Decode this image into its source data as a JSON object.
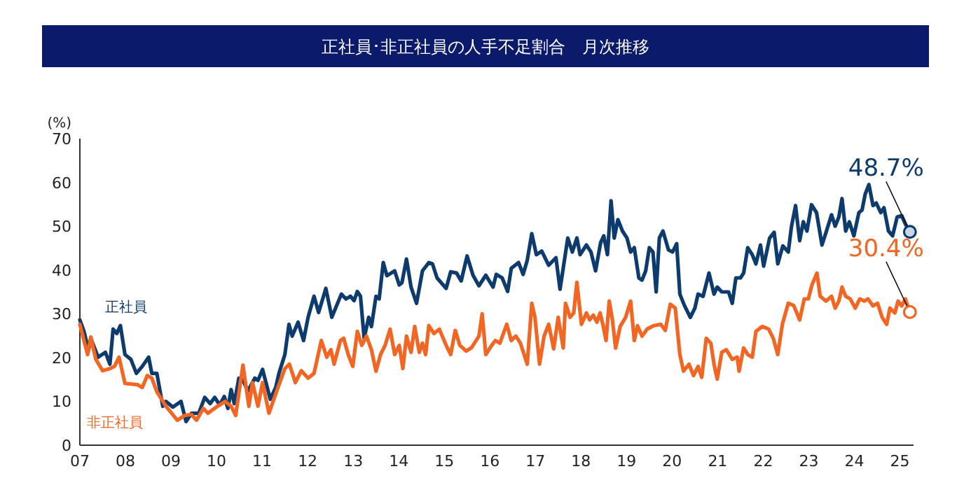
{
  "chart_data": {
    "type": "line",
    "title": "正社員･非正社員の人手不足割合　月次推移",
    "ylabel": "(%)",
    "xlim": [
      2007,
      2025.3
    ],
    "ylim": [
      0,
      70
    ],
    "yticks": [
      0,
      10,
      20,
      30,
      40,
      50,
      60,
      70
    ],
    "xticks": [
      {
        "value": 2007,
        "label": "07"
      },
      {
        "value": 2008,
        "label": "08"
      },
      {
        "value": 2009,
        "label": "09"
      },
      {
        "value": 2010,
        "label": "10"
      },
      {
        "value": 2011,
        "label": "11"
      },
      {
        "value": 2012,
        "label": "12"
      },
      {
        "value": 2013,
        "label": "13"
      },
      {
        "value": 2014,
        "label": "14"
      },
      {
        "value": 2015,
        "label": "15"
      },
      {
        "value": 2016,
        "label": "16"
      },
      {
        "value": 2017,
        "label": "17"
      },
      {
        "value": 2018,
        "label": "18"
      },
      {
        "value": 2019,
        "label": "19"
      },
      {
        "value": 2020,
        "label": "20"
      },
      {
        "value": 2021,
        "label": "21"
      },
      {
        "value": 2022,
        "label": "22"
      },
      {
        "value": 2023,
        "label": "23"
      },
      {
        "value": 2024,
        "label": "24"
      },
      {
        "value": 2025,
        "label": "25"
      }
    ],
    "series": [
      {
        "name": "正社員",
        "color": "#0d3b6e",
        "x": [
          2007.0,
          2007.09,
          2007.19,
          2007.24,
          2007.4,
          2007.56,
          2007.66,
          2007.73,
          2007.81,
          2007.89,
          2007.99,
          2008.12,
          2008.24,
          2008.37,
          2008.51,
          2008.58,
          2008.69,
          2008.82,
          2008.89,
          2009.04,
          2009.22,
          2009.33,
          2009.45,
          2009.61,
          2009.74,
          2009.86,
          2009.96,
          2010.07,
          2010.17,
          2010.25,
          2010.32,
          2010.39,
          2010.49,
          2010.58,
          2010.69,
          2010.84,
          2010.91,
          2011.01,
          2011.18,
          2011.3,
          2011.37,
          2011.5,
          2011.59,
          2011.66,
          2011.79,
          2011.91,
          2012.01,
          2012.14,
          2012.24,
          2012.4,
          2012.53,
          2012.74,
          2012.84,
          2012.94,
          2013.02,
          2013.09,
          2013.16,
          2013.24,
          2013.34,
          2013.4,
          2013.5,
          2013.57,
          2013.66,
          2013.74,
          2013.91,
          2014.01,
          2014.07,
          2014.17,
          2014.27,
          2014.39,
          2014.52,
          2014.66,
          2014.74,
          2014.84,
          2015.04,
          2015.14,
          2015.27,
          2015.37,
          2015.5,
          2015.63,
          2015.76,
          2015.91,
          2016.07,
          2016.14,
          2016.27,
          2016.39,
          2016.47,
          2016.63,
          2016.73,
          2016.82,
          2016.92,
          2017.02,
          2017.14,
          2017.29,
          2017.45,
          2017.54,
          2017.71,
          2017.81,
          2017.91,
          2017.98,
          2018.12,
          2018.22,
          2018.32,
          2018.43,
          2018.5,
          2018.58,
          2018.66,
          2018.73,
          2018.81,
          2018.91,
          2019.01,
          2019.09,
          2019.17,
          2019.27,
          2019.34,
          2019.42,
          2019.5,
          2019.58,
          2019.65,
          2019.72,
          2019.8,
          2019.92,
          2020.01,
          2020.1,
          2020.17,
          2020.27,
          2020.4,
          2020.5,
          2020.57,
          2020.68,
          2020.81,
          2020.92,
          2020.99,
          2021.09,
          2021.24,
          2021.32,
          2021.4,
          2021.5,
          2021.57,
          2021.66,
          2021.76,
          2021.84,
          2021.94,
          2022.01,
          2022.14,
          2022.24,
          2022.32,
          2022.43,
          2022.55,
          2022.62,
          2022.71,
          2022.8,
          2022.88,
          2022.96,
          2023.06,
          2023.17,
          2023.29,
          2023.37,
          2023.5,
          2023.58,
          2023.66,
          2023.73,
          2023.81,
          2023.89,
          2023.99,
          2024.1,
          2024.17,
          2024.24,
          2024.32,
          2024.41,
          2024.48,
          2024.58,
          2024.65,
          2024.75,
          2024.84,
          2024.94,
          2025.04,
          2025.12,
          2025.22
        ],
        "values": [
          28.6,
          26.0,
          21.7,
          24.4,
          20.1,
          21.2,
          18.5,
          26.5,
          25.5,
          27.3,
          20.7,
          19.6,
          16.4,
          18.0,
          20.1,
          16.4,
          16.4,
          8.9,
          10.0,
          8.7,
          10.0,
          5.4,
          7.3,
          7.3,
          10.9,
          9.5,
          10.9,
          9.2,
          11.1,
          8.4,
          12.7,
          9.5,
          15.3,
          14.8,
          12.4,
          15.3,
          14.8,
          17.3,
          10.5,
          13.2,
          16.4,
          20.7,
          27.6,
          24.9,
          28.1,
          23.9,
          29.2,
          34.0,
          30.3,
          35.8,
          29.2,
          34.5,
          33.4,
          34.0,
          33.0,
          35.1,
          34.0,
          24.4,
          29.2,
          27.1,
          34.0,
          33.4,
          41.7,
          38.7,
          39.8,
          36.6,
          37.1,
          42.5,
          36.1,
          32.4,
          39.8,
          41.7,
          41.4,
          38.2,
          35.8,
          39.6,
          39.3,
          37.5,
          43.2,
          38.8,
          36.4,
          38.8,
          36.1,
          39.0,
          38.2,
          35.1,
          40.4,
          41.7,
          39.0,
          42.2,
          48.3,
          43.5,
          44.3,
          41.1,
          42.8,
          35.6,
          47.3,
          44.1,
          47.3,
          43.5,
          45.7,
          44.1,
          39.8,
          46.2,
          47.8,
          43.5,
          55.8,
          47.3,
          51.5,
          48.9,
          47.3,
          44.1,
          45.1,
          38.2,
          37.7,
          39.8,
          45.1,
          44.1,
          35.0,
          47.3,
          48.9,
          44.6,
          44.1,
          46.0,
          34.5,
          31.9,
          29.2,
          31.3,
          34.5,
          34.0,
          39.3,
          34.5,
          36.1,
          35.0,
          35.0,
          32.4,
          38.2,
          38.2,
          39.3,
          45.1,
          43.5,
          41.4,
          45.7,
          40.9,
          47.3,
          48.6,
          41.4,
          45.5,
          44.1,
          49.9,
          54.7,
          46.7,
          51.0,
          48.9,
          54.9,
          53.1,
          45.7,
          48.3,
          52.6,
          50.0,
          52.1,
          56.3,
          48.9,
          51.0,
          47.8,
          53.1,
          53.7,
          57.4,
          59.5,
          54.7,
          55.3,
          53.1,
          54.2,
          48.9,
          47.8,
          52.1,
          52.4,
          50.5,
          48.7
        ]
      },
      {
        "name": "非正社員",
        "color": "#f26522",
        "x": [
          2007.0,
          2007.09,
          2007.17,
          2007.24,
          2007.35,
          2007.5,
          2007.66,
          2007.76,
          2007.86,
          2007.99,
          2008.27,
          2008.37,
          2008.48,
          2008.58,
          2008.69,
          2008.89,
          2009.14,
          2009.3,
          2009.45,
          2009.56,
          2009.71,
          2009.81,
          2010.02,
          2010.19,
          2010.32,
          2010.42,
          2010.58,
          2010.71,
          2010.79,
          2010.91,
          2011.01,
          2011.15,
          2011.35,
          2011.5,
          2011.6,
          2011.73,
          2011.86,
          2012.01,
          2012.14,
          2012.3,
          2012.42,
          2012.51,
          2012.58,
          2012.72,
          2012.79,
          2012.89,
          2012.99,
          2013.09,
          2013.19,
          2013.29,
          2013.4,
          2013.5,
          2013.6,
          2013.7,
          2013.81,
          2013.91,
          2014.01,
          2014.09,
          2014.17,
          2014.27,
          2014.35,
          2014.45,
          2014.52,
          2014.59,
          2014.66,
          2014.77,
          2014.89,
          2015.04,
          2015.14,
          2015.24,
          2015.34,
          2015.48,
          2015.6,
          2015.76,
          2015.83,
          2015.91,
          2016.04,
          2016.12,
          2016.22,
          2016.37,
          2016.47,
          2016.57,
          2016.67,
          2016.82,
          2016.92,
          2016.99,
          2017.09,
          2017.19,
          2017.29,
          2017.4,
          2017.5,
          2017.61,
          2017.66,
          2017.76,
          2017.84,
          2017.91,
          2018.01,
          2018.12,
          2018.19,
          2018.27,
          2018.35,
          2018.42,
          2018.49,
          2018.55,
          2018.62,
          2018.69,
          2018.76,
          2018.86,
          2018.98,
          2019.09,
          2019.17,
          2019.24,
          2019.34,
          2019.45,
          2019.6,
          2019.75,
          2019.85,
          2019.96,
          2020.07,
          2020.17,
          2020.25,
          2020.37,
          2020.47,
          2020.57,
          2020.65,
          2020.75,
          2020.85,
          2020.92,
          2020.99,
          2021.09,
          2021.19,
          2021.32,
          2021.43,
          2021.47,
          2021.57,
          2021.66,
          2021.76,
          2021.84,
          2021.98,
          2022.12,
          2022.22,
          2022.32,
          2022.42,
          2022.55,
          2022.67,
          2022.8,
          2022.9,
          2022.99,
          2023.07,
          2023.18,
          2023.25,
          2023.38,
          2023.5,
          2023.58,
          2023.66,
          2023.73,
          2023.81,
          2023.91,
          2024.02,
          2024.12,
          2024.22,
          2024.3,
          2024.41,
          2024.51,
          2024.61,
          2024.71,
          2024.78,
          2024.89,
          2024.96,
          2025.04,
          2025.12,
          2025.22
        ],
        "values": [
          27.6,
          23.9,
          20.7,
          24.7,
          19.6,
          17.0,
          17.5,
          18.0,
          20.1,
          14.1,
          13.8,
          13.2,
          15.9,
          15.3,
          12.2,
          8.9,
          5.7,
          6.8,
          7.0,
          5.7,
          8.4,
          7.3,
          8.9,
          10.0,
          8.9,
          6.8,
          18.3,
          8.9,
          14.3,
          8.9,
          14.3,
          7.3,
          13.2,
          17.5,
          18.5,
          14.3,
          17.0,
          15.3,
          16.4,
          23.9,
          20.1,
          21.8,
          18.5,
          23.9,
          24.4,
          20.7,
          18.0,
          26.0,
          22.8,
          24.9,
          21.8,
          16.9,
          20.7,
          22.8,
          26.5,
          20.7,
          22.8,
          17.5,
          24.9,
          21.2,
          27.1,
          21.2,
          23.3,
          20.7,
          27.3,
          25.5,
          26.5,
          22.8,
          20.7,
          26.2,
          22.8,
          21.5,
          22.3,
          24.9,
          30.0,
          20.7,
          22.8,
          23.9,
          23.3,
          27.6,
          23.9,
          24.9,
          23.3,
          18.5,
          32.4,
          29.2,
          18.5,
          24.9,
          27.6,
          22.0,
          29.2,
          22.2,
          32.4,
          29.2,
          30.2,
          37.2,
          27.6,
          30.2,
          28.6,
          29.7,
          28.1,
          30.2,
          27.1,
          23.9,
          32.9,
          28.6,
          22.2,
          27.1,
          29.2,
          32.9,
          23.9,
          27.3,
          24.9,
          26.5,
          27.3,
          27.6,
          26.2,
          32.2,
          31.3,
          20.7,
          16.9,
          18.5,
          15.9,
          18.0,
          15.5,
          24.4,
          23.3,
          18.5,
          15.1,
          21.2,
          21.8,
          19.6,
          20.1,
          16.9,
          22.2,
          20.7,
          20.1,
          26.0,
          27.1,
          26.5,
          24.4,
          20.7,
          27.6,
          32.4,
          31.9,
          28.6,
          33.4,
          33.4,
          36.6,
          39.3,
          34.0,
          32.9,
          34.0,
          31.3,
          32.9,
          36.1,
          34.0,
          33.4,
          31.3,
          33.4,
          32.9,
          33.4,
          31.8,
          32.4,
          29.2,
          27.6,
          31.3,
          30.2,
          32.9,
          31.8,
          33.4,
          30.4
        ]
      }
    ],
    "annotations": [
      {
        "text": "48.7%",
        "x": 2025.22,
        "y": 48.7
      },
      {
        "text": "30.4%",
        "x": 2025.22,
        "y": 30.4
      }
    ]
  }
}
